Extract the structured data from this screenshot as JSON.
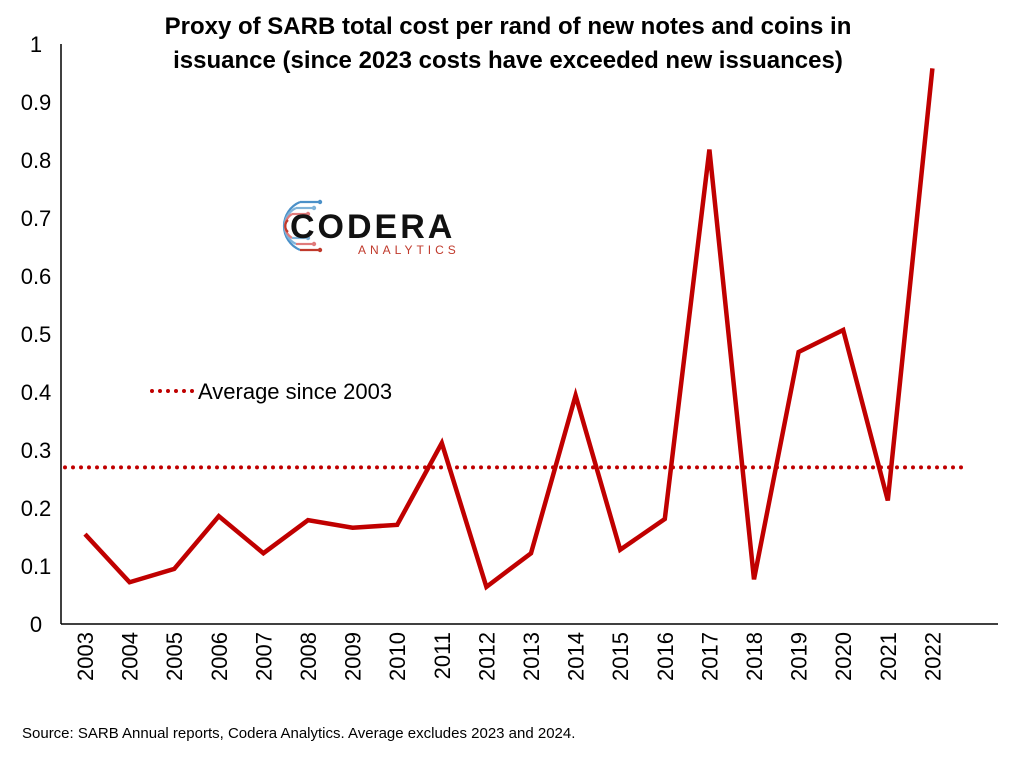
{
  "chart_data": {
    "type": "line",
    "title_lines": [
      "Proxy of SARB total cost per rand of new notes and coins in",
      "issuance (since 2023 costs have exceeded new issuances)"
    ],
    "categories": [
      "2003",
      "2004",
      "2005",
      "2006",
      "2007",
      "2008",
      "2009",
      "2010",
      "2011",
      "2012",
      "2013",
      "2014",
      "2015",
      "2016",
      "2017",
      "2018",
      "2019",
      "2020",
      "2021",
      "2022"
    ],
    "series": [
      {
        "values": [
          0.155,
          0.072,
          0.095,
          0.186,
          0.122,
          0.179,
          0.166,
          0.171,
          0.312,
          0.064,
          0.122,
          0.394,
          0.128,
          0.181,
          0.818,
          0.077,
          0.469,
          0.507,
          0.213,
          0.958
        ],
        "color": "#c00000"
      }
    ],
    "reference_line": {
      "label": "Average since 2003",
      "value": 0.27,
      "color": "#c00000",
      "style": "dotted"
    },
    "ylim": [
      0,
      1
    ],
    "yticks": [
      "0",
      "0.1",
      "0.2",
      "0.3",
      "0.4",
      "0.5",
      "0.6",
      "0.7",
      "0.8",
      "0.9",
      "1"
    ],
    "xlabel": "",
    "ylabel": "",
    "grid": false,
    "legend": "left-middle",
    "source": "Source: SARB Annual reports, Codera Analytics. Average excludes 2023 and 2024.",
    "logo": {
      "name": "CODERA",
      "subtitle": "ANALYTICS"
    }
  }
}
